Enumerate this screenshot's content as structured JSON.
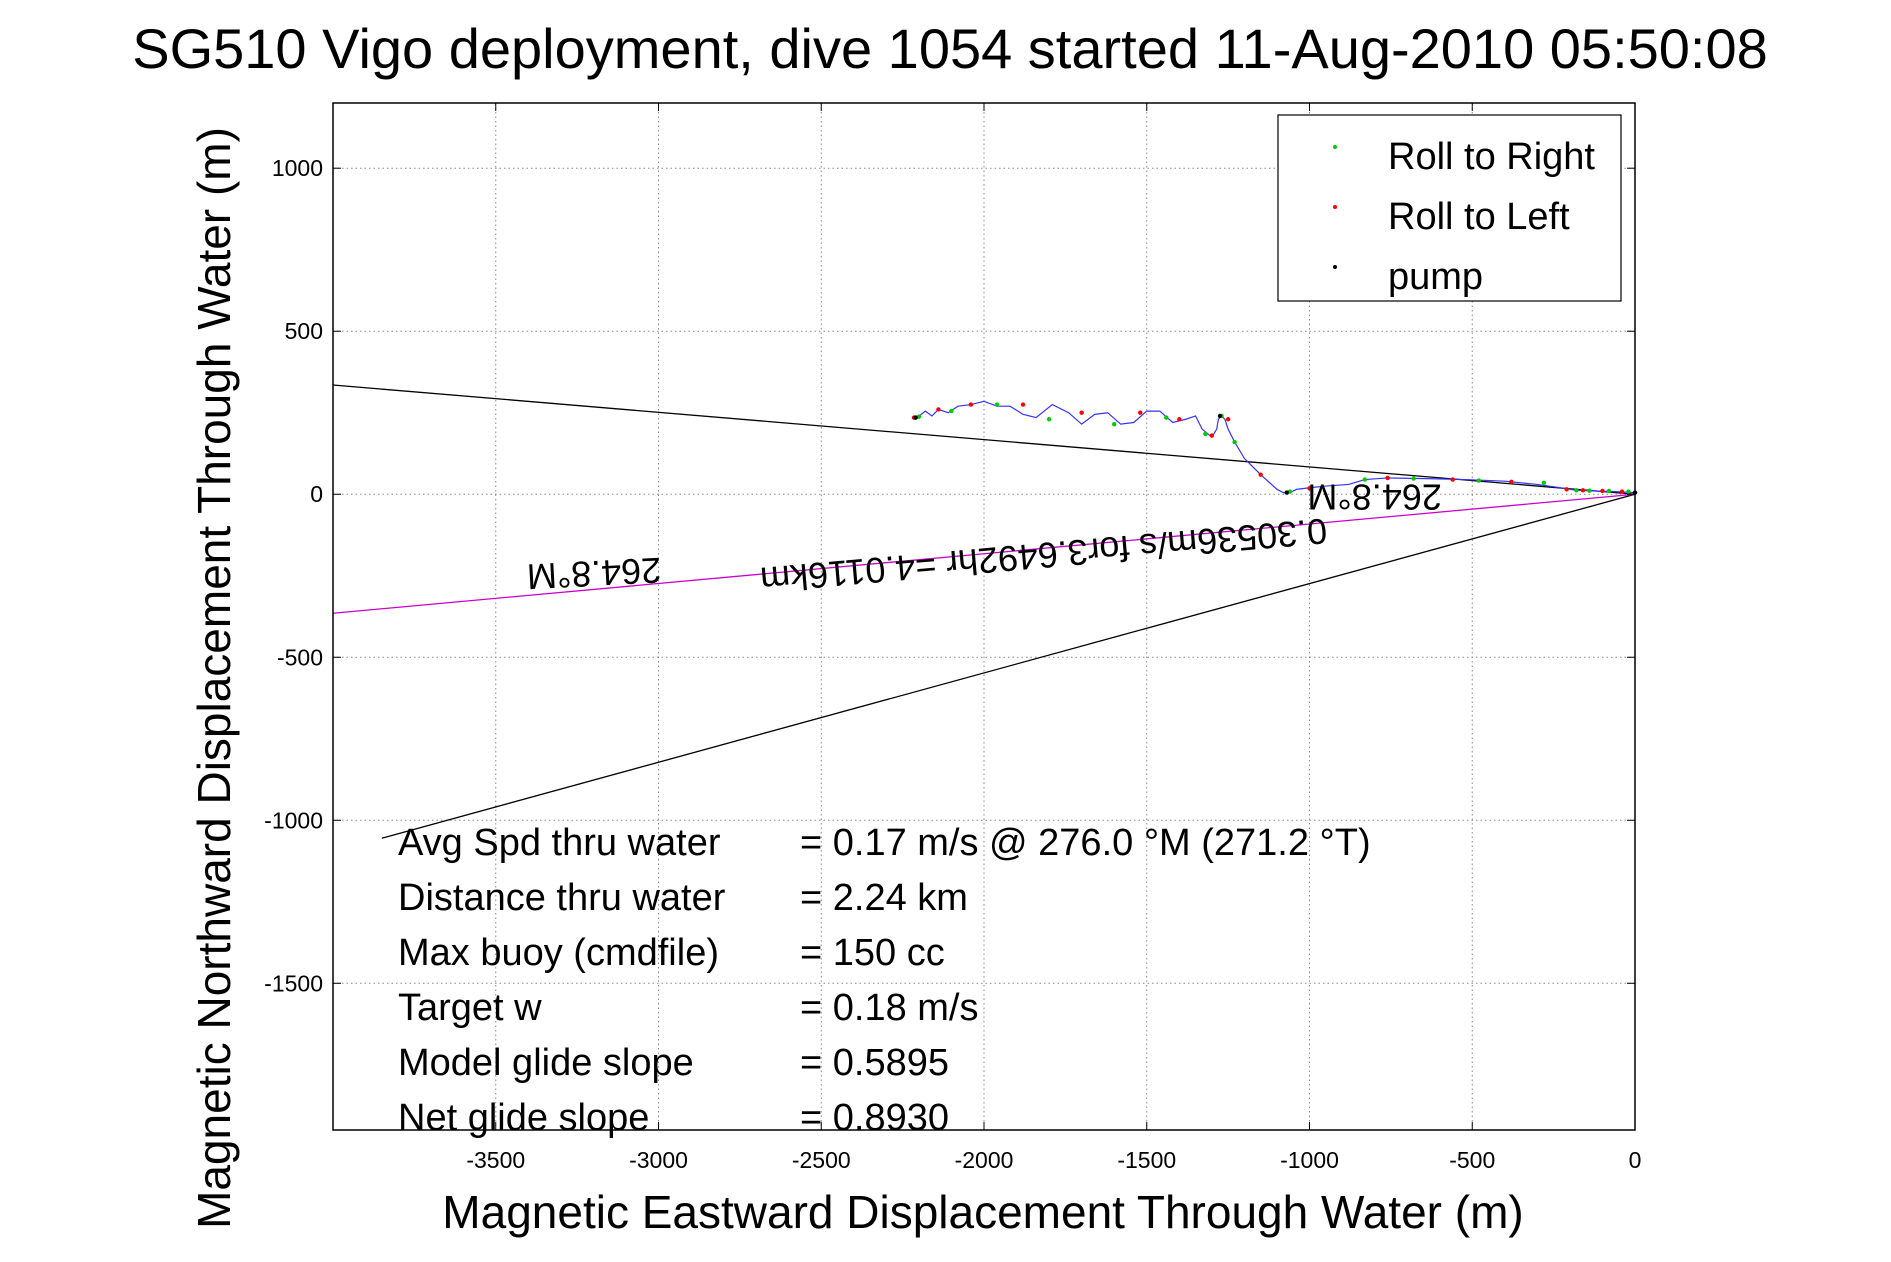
{
  "chart_data": {
    "type": "line",
    "title": "SG510 Vigo deployment, dive 1054 started 11-Aug-2010 05:50:08",
    "xlabel": "Magnetic Eastward Displacement Through Water (m)",
    "ylabel": "Magnetic Northward Displacement Through Water (m)",
    "xlim": [
      -4000,
      0
    ],
    "ylim": [
      -1950,
      1200
    ],
    "xticks": [
      -3500,
      -3000,
      -2500,
      -2000,
      -1500,
      -1000,
      -500,
      0
    ],
    "yticks": [
      1000,
      500,
      0,
      -500,
      -1000,
      -1500
    ],
    "grid": true,
    "legend_position": "top-right",
    "legend": [
      {
        "label": "Roll to Right",
        "color": "#00cc00"
      },
      {
        "label": "Roll to Left",
        "color": "#ff0000"
      },
      {
        "label": "pump",
        "color": "#000000"
      }
    ],
    "track": {
      "name": "glider track",
      "color": "#3333ff",
      "x": [
        0,
        -60,
        -120,
        -180,
        -230,
        -300,
        -400,
        -520,
        -640,
        -760,
        -830,
        -880,
        -950,
        -1000,
        -1040,
        -1060,
        -1080,
        -1100,
        -1150,
        -1200,
        -1230,
        -1250,
        -1260,
        -1270,
        -1280,
        -1285,
        -1300,
        -1330,
        -1350,
        -1380,
        -1420,
        -1460,
        -1500,
        -1540,
        -1580,
        -1620,
        -1660,
        -1700,
        -1740,
        -1790,
        -1840,
        -1880,
        -1920,
        -1960,
        -2000,
        -2040,
        -2080,
        -2110,
        -2140,
        -2160,
        -2180,
        -2200,
        -2220
      ],
      "y": [
        5,
        8,
        10,
        12,
        20,
        30,
        40,
        45,
        48,
        50,
        45,
        30,
        25,
        20,
        15,
        5,
        5,
        15,
        60,
        110,
        160,
        200,
        230,
        240,
        230,
        200,
        175,
        200,
        240,
        230,
        220,
        255,
        255,
        220,
        215,
        250,
        245,
        215,
        250,
        275,
        235,
        245,
        270,
        270,
        285,
        275,
        270,
        250,
        260,
        240,
        255,
        240,
        235
      ]
    },
    "roll_right": {
      "x": [
        -20,
        -80,
        -140,
        -180,
        -280,
        -480,
        -680,
        -830,
        -1060,
        -1230,
        -1270,
        -1320,
        -1440,
        -1600,
        -1800,
        -1960,
        -2100,
        -2200
      ],
      "y": [
        8,
        10,
        11,
        12,
        35,
        42,
        48,
        45,
        8,
        160,
        240,
        185,
        235,
        215,
        230,
        275,
        255,
        238
      ]
    },
    "roll_left": {
      "x": [
        -40,
        -100,
        -160,
        -210,
        -380,
        -560,
        -760,
        -1000,
        -1150,
        -1250,
        -1300,
        -1400,
        -1520,
        -1700,
        -1880,
        -2040,
        -2140,
        -2215
      ],
      "y": [
        8,
        10,
        12,
        15,
        38,
        45,
        50,
        18,
        60,
        230,
        180,
        230,
        250,
        250,
        275,
        275,
        260,
        235
      ]
    },
    "pump": {
      "x": [
        0,
        -1070,
        -1275,
        -2210
      ],
      "y": [
        5,
        5,
        240,
        235
      ]
    },
    "reference_lines": [
      {
        "name": "upper heading line",
        "color": "#000000",
        "x": [
          0,
          -4000
        ],
        "y": [
          0,
          335
        ]
      },
      {
        "name": "lower heading line",
        "color": "#000000",
        "x": [
          0,
          -3850
        ],
        "y": [
          0,
          -1055
        ]
      },
      {
        "name": "current vector",
        "color": "#cc00cc",
        "x": [
          0,
          -4000
        ],
        "y": [
          0,
          -365
        ]
      }
    ],
    "annotations": [
      {
        "text": "264.8°M",
        "x": -3200,
        "y": -205
      },
      {
        "text": "264.8°M",
        "x": -800,
        "y": 30
      },
      {
        "text": "0.30536m/s for3.6492hr =4.0116km",
        "x": -1820,
        "y": -150
      }
    ],
    "stats": [
      {
        "label": "Avg Spd thru water",
        "value": "=  0.17 m/s @ 276.0 °M (271.2 °T)"
      },
      {
        "label": "Distance thru water",
        "value": "=  2.24 km"
      },
      {
        "label": "Max buoy (cmdfile)",
        "value": "= 150 cc"
      },
      {
        "label": "Target w",
        "value": "= 0.18 m/s"
      },
      {
        "label": "Model glide slope",
        "value": "= 0.5895"
      },
      {
        "label": "Net glide slope",
        "value": "= 0.8930"
      }
    ]
  }
}
